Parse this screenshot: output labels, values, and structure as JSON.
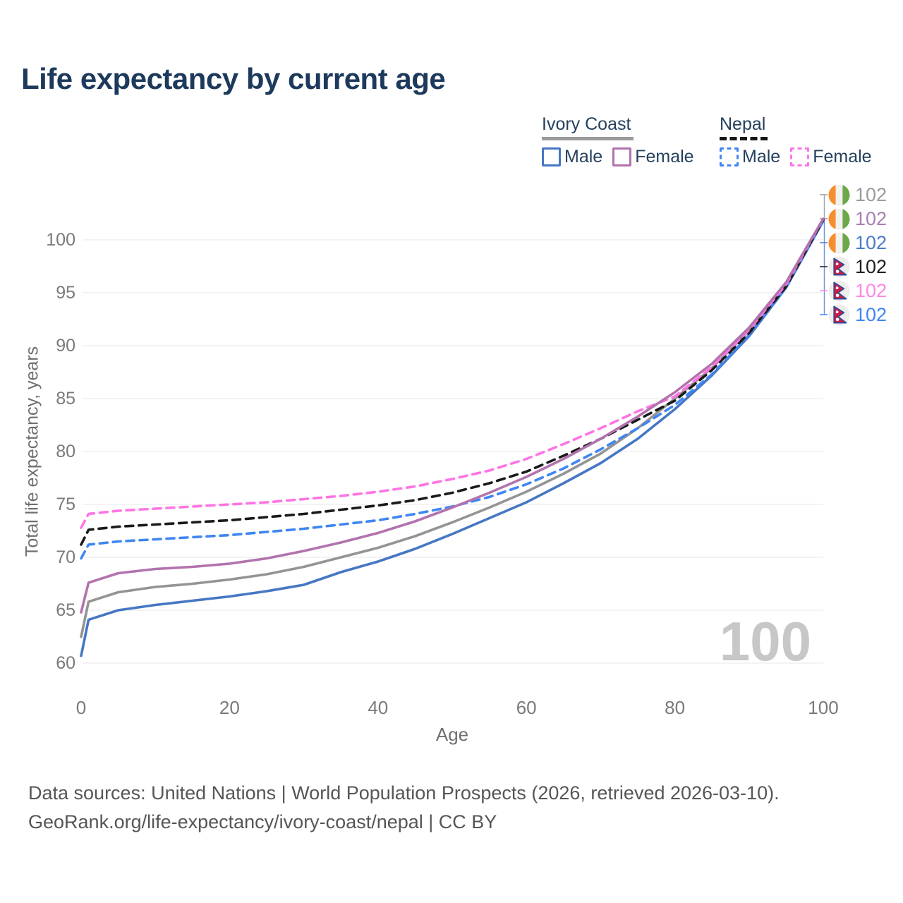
{
  "page": {
    "title": "Life expectancy by current age"
  },
  "legend": {
    "groups": [
      {
        "label": "Ivory Coast",
        "line_style": "solid",
        "underline_color": "#9a9a9a",
        "items": [
          {
            "label": "Male",
            "color": "#4677c4"
          },
          {
            "label": "Female",
            "color": "#b273ae"
          }
        ]
      },
      {
        "label": "Nepal",
        "line_style": "dashed",
        "underline_color": "#161616",
        "items": [
          {
            "label": "Male",
            "color": "#3f86f2"
          },
          {
            "label": "Female",
            "color": "#ff74e4"
          }
        ]
      }
    ]
  },
  "chart_data": {
    "type": "line",
    "title": "Life expectancy by current age",
    "xlabel": "Age",
    "ylabel": "Total life expectancy, years",
    "xlim": [
      0,
      100
    ],
    "ylim": [
      60,
      102
    ],
    "xticks": [
      0,
      20,
      40,
      60,
      80,
      100
    ],
    "yticks": [
      60,
      65,
      70,
      75,
      80,
      85,
      90,
      95,
      100
    ],
    "grid": "horizontal-only",
    "grid_color": "#ececec",
    "legend_position": "top-right",
    "watermark": "100",
    "ages": [
      0,
      1,
      5,
      10,
      15,
      20,
      25,
      30,
      35,
      40,
      45,
      50,
      55,
      60,
      65,
      70,
      75,
      80,
      85,
      90,
      95,
      100
    ],
    "series": [
      {
        "id": "civ-total",
        "name": "Ivory Coast Both sexes",
        "color": "#949494",
        "dash": "solid",
        "values": [
          62.5,
          65.8,
          66.7,
          67.2,
          67.5,
          67.9,
          68.4,
          69.1,
          70.0,
          70.9,
          72.0,
          73.3,
          74.7,
          76.2,
          77.9,
          79.8,
          82.2,
          85.0,
          87.9,
          91.4,
          95.8,
          101.9
        ]
      },
      {
        "id": "civ-male",
        "name": "Ivory Coast Male",
        "color": "#4677c4",
        "dash": "solid",
        "values": [
          60.7,
          64.1,
          65.0,
          65.5,
          65.9,
          66.3,
          66.8,
          67.4,
          68.6,
          69.6,
          70.8,
          72.2,
          73.7,
          75.2,
          77.0,
          78.9,
          81.2,
          84.0,
          87.2,
          90.9,
          95.5,
          101.8
        ]
      },
      {
        "id": "npl-male",
        "name": "Nepal Male",
        "color": "#3f86f2",
        "dash": "dashed",
        "values": [
          69.9,
          71.2,
          71.5,
          71.7,
          71.9,
          72.1,
          72.4,
          72.7,
          73.1,
          73.5,
          74.1,
          74.8,
          75.7,
          76.9,
          78.4,
          80.2,
          82.2,
          84.4,
          87.3,
          91.0,
          95.5,
          101.8
        ]
      },
      {
        "id": "npl-total",
        "name": "Nepal Both sexes",
        "color": "#1a1a1a",
        "dash": "dashed",
        "values": [
          71.2,
          72.6,
          72.9,
          73.1,
          73.3,
          73.5,
          73.8,
          74.1,
          74.5,
          74.9,
          75.4,
          76.1,
          77.0,
          78.1,
          79.6,
          81.2,
          83.0,
          84.8,
          87.7,
          91.2,
          95.6,
          101.9
        ]
      },
      {
        "id": "npl-female",
        "name": "Nepal Female",
        "color": "#ff74e4",
        "dash": "dashed",
        "values": [
          72.8,
          74.1,
          74.4,
          74.6,
          74.8,
          75.0,
          75.2,
          75.5,
          75.8,
          76.2,
          76.7,
          77.4,
          78.2,
          79.3,
          80.7,
          82.2,
          83.8,
          85.2,
          88.0,
          91.5,
          95.8,
          102.0
        ]
      },
      {
        "id": "civ-female",
        "name": "Ivory Coast Female",
        "color": "#b273ae",
        "dash": "solid",
        "values": [
          64.8,
          67.6,
          68.5,
          68.9,
          69.1,
          69.4,
          69.9,
          70.6,
          71.4,
          72.3,
          73.4,
          74.7,
          76.1,
          77.6,
          79.3,
          81.2,
          83.3,
          85.6,
          88.3,
          91.7,
          96.0,
          102.0
        ]
      }
    ],
    "end_labels": [
      {
        "flag": "civ",
        "flag_name": "ivory-coast-flag-icon",
        "value": "102",
        "color": "#9b9b9b"
      },
      {
        "flag": "civ",
        "flag_name": "ivory-coast-flag-icon",
        "value": "102",
        "color": "#a97fb2"
      },
      {
        "flag": "civ",
        "flag_name": "ivory-coast-flag-icon",
        "value": "102",
        "color": "#4a7cc9"
      },
      {
        "flag": "npl",
        "flag_name": "nepal-flag-icon",
        "value": "102",
        "color": "#1f1f1f"
      },
      {
        "flag": "npl",
        "flag_name": "nepal-flag-icon",
        "value": "102",
        "color": "#ff85e8"
      },
      {
        "flag": "npl",
        "flag_name": "nepal-flag-icon",
        "value": "102",
        "color": "#3f86f2"
      }
    ]
  },
  "footer": {
    "line1": "Data sources: United Nations | World Population Prospects (2026, retrieved 2026-03-10).",
    "line2": "GeoRank.org/life-expectancy/ivory-coast/nepal | CC BY"
  }
}
